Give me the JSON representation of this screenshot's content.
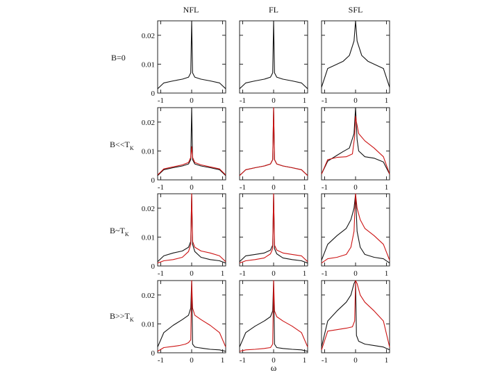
{
  "chart_data": {
    "type": "line",
    "columns": [
      "NFL",
      "FL",
      "SFL"
    ],
    "rows": [
      {
        "label": "B=0",
        "main": "B=0",
        "sub": ""
      },
      {
        "label": "B<<T_K",
        "main": "B<<T",
        "sub": "K"
      },
      {
        "label": "B~T_K",
        "main": "B~T",
        "sub": "K"
      },
      {
        "label": "B>>T_K",
        "main": "B>>T",
        "sub": "K"
      }
    ],
    "xlabel": "ω",
    "xlim": [
      -1.1,
      1.1
    ],
    "ylim": [
      0,
      0.025
    ],
    "xticks": [
      -1,
      0,
      1
    ],
    "xtick_labels": [
      "-1",
      "0",
      "1"
    ],
    "yticks": [
      0,
      0.01,
      0.02
    ],
    "ytick_labels": [
      "0",
      "0.01",
      "0.02"
    ],
    "series_colors": {
      "black": "#111111",
      "red": "#cc1111"
    },
    "panels": [
      {
        "row": 0,
        "col": 0,
        "series": [
          {
            "color": "black",
            "w": [
              -1.1,
              -0.9,
              -0.6,
              -0.3,
              -0.1,
              -0.03,
              0,
              0.03,
              0.1,
              0.3,
              0.6,
              0.9,
              1.1
            ],
            "A": [
              0.0015,
              0.0035,
              0.0042,
              0.0048,
              0.0055,
              0.007,
              0.025,
              0.007,
              0.0055,
              0.0048,
              0.0042,
              0.0035,
              0.0015
            ]
          }
        ]
      },
      {
        "row": 0,
        "col": 1,
        "series": [
          {
            "color": "black",
            "w": [
              -1.1,
              -0.9,
              -0.6,
              -0.3,
              -0.1,
              -0.03,
              0,
              0.03,
              0.1,
              0.3,
              0.6,
              0.9,
              1.1
            ],
            "A": [
              0.0015,
              0.0035,
              0.0042,
              0.0048,
              0.0055,
              0.007,
              0.025,
              0.007,
              0.0055,
              0.0048,
              0.0042,
              0.0035,
              0.0015
            ]
          }
        ]
      },
      {
        "row": 0,
        "col": 2,
        "series": [
          {
            "color": "black",
            "w": [
              -1.1,
              -0.9,
              -0.7,
              -0.4,
              -0.2,
              -0.05,
              0,
              0.05,
              0.2,
              0.4,
              0.7,
              0.9,
              1.1
            ],
            "A": [
              0.002,
              0.0085,
              0.0095,
              0.011,
              0.013,
              0.018,
              0.025,
              0.018,
              0.013,
              0.011,
              0.0095,
              0.0085,
              0.002
            ]
          }
        ]
      },
      {
        "row": 1,
        "col": 0,
        "series": [
          {
            "color": "black",
            "w": [
              -1.1,
              -0.9,
              -0.6,
              -0.3,
              -0.1,
              -0.03,
              0,
              0.03,
              0.1,
              0.3,
              0.6,
              0.9,
              1.1
            ],
            "A": [
              0.0015,
              0.0035,
              0.0042,
              0.0048,
              0.0055,
              0.007,
              0.025,
              0.007,
              0.0055,
              0.0048,
              0.0042,
              0.0035,
              0.0015
            ]
          },
          {
            "color": "red",
            "w": [
              -1.1,
              -0.9,
              -0.6,
              -0.3,
              -0.1,
              -0.03,
              0,
              0.03,
              0.1,
              0.3,
              0.6,
              0.9,
              1.1
            ],
            "A": [
              0.0017,
              0.0038,
              0.0045,
              0.0052,
              0.006,
              0.0078,
              0.0115,
              0.0078,
              0.006,
              0.0052,
              0.0045,
              0.0038,
              0.0017
            ]
          }
        ]
      },
      {
        "row": 1,
        "col": 1,
        "series": [
          {
            "color": "black",
            "w": [
              -1.1,
              -0.9,
              -0.6,
              -0.3,
              -0.1,
              -0.03,
              0,
              0.03,
              0.1,
              0.3,
              0.6,
              0.9,
              1.1
            ],
            "A": [
              0.0015,
              0.0035,
              0.0042,
              0.0048,
              0.0055,
              0.007,
              0.025,
              0.007,
              0.0055,
              0.0048,
              0.0042,
              0.0035,
              0.0015
            ]
          },
          {
            "color": "red",
            "w": [
              -1.1,
              -0.9,
              -0.6,
              -0.3,
              -0.1,
              -0.03,
              0,
              0.03,
              0.1,
              0.3,
              0.6,
              0.9,
              1.1
            ],
            "A": [
              0.0015,
              0.0035,
              0.0042,
              0.0048,
              0.0055,
              0.007,
              0.025,
              0.007,
              0.0055,
              0.0048,
              0.0042,
              0.0035,
              0.0015
            ]
          }
        ]
      },
      {
        "row": 1,
        "col": 2,
        "series": [
          {
            "color": "black",
            "w": [
              -1.1,
              -0.9,
              -0.6,
              -0.4,
              -0.2,
              -0.05,
              0,
              0.05,
              0.1,
              0.3,
              0.6,
              0.9,
              1.1
            ],
            "A": [
              0.002,
              0.0065,
              0.0085,
              0.0098,
              0.011,
              0.016,
              0.025,
              0.014,
              0.01,
              0.008,
              0.0075,
              0.0062,
              0.002
            ]
          },
          {
            "color": "red",
            "w": [
              -1.1,
              -0.9,
              -0.6,
              -0.3,
              -0.1,
              -0.03,
              0,
              0.03,
              0.1,
              0.3,
              0.6,
              0.9,
              1.1
            ],
            "A": [
              0.002,
              0.007,
              0.0078,
              0.008,
              0.009,
              0.015,
              0.022,
              0.02,
              0.016,
              0.0135,
              0.011,
              0.008,
              0.002
            ]
          }
        ]
      },
      {
        "row": 2,
        "col": 0,
        "series": [
          {
            "color": "black",
            "w": [
              -1.1,
              -0.9,
              -0.6,
              -0.3,
              -0.1,
              -0.03,
              0,
              0.03,
              0.1,
              0.3,
              0.6,
              0.9,
              1.1
            ],
            "A": [
              0.0015,
              0.0035,
              0.0045,
              0.0052,
              0.0065,
              0.0085,
              0.025,
              0.0075,
              0.005,
              0.003,
              0.0022,
              0.0018,
              0.001
            ]
          },
          {
            "color": "red",
            "w": [
              -1.1,
              -0.9,
              -0.6,
              -0.3,
              -0.1,
              -0.03,
              0,
              0.03,
              0.1,
              0.3,
              0.6,
              0.9,
              1.1
            ],
            "A": [
              0.001,
              0.0018,
              0.0022,
              0.003,
              0.005,
              0.0075,
              0.025,
              0.0085,
              0.0065,
              0.0052,
              0.0045,
              0.0035,
              0.0015
            ]
          }
        ]
      },
      {
        "row": 2,
        "col": 1,
        "series": [
          {
            "color": "black",
            "w": [
              -1.1,
              -0.9,
              -0.6,
              -0.3,
              -0.1,
              -0.03,
              0,
              0.03,
              0.1,
              0.3,
              0.6,
              0.9,
              1.1
            ],
            "A": [
              0.0015,
              0.0035,
              0.004,
              0.0045,
              0.0055,
              0.0072,
              0.025,
              0.006,
              0.0042,
              0.0028,
              0.0022,
              0.0018,
              0.001
            ]
          },
          {
            "color": "red",
            "w": [
              -1.1,
              -0.9,
              -0.6,
              -0.3,
              -0.1,
              -0.03,
              0,
              0.03,
              0.1,
              0.3,
              0.6,
              0.9,
              1.1
            ],
            "A": [
              0.001,
              0.0018,
              0.0022,
              0.0028,
              0.0042,
              0.006,
              0.025,
              0.0072,
              0.0055,
              0.0045,
              0.004,
              0.0035,
              0.0015
            ]
          }
        ]
      },
      {
        "row": 2,
        "col": 2,
        "series": [
          {
            "color": "black",
            "w": [
              -1.1,
              -0.9,
              -0.6,
              -0.3,
              -0.15,
              -0.05,
              0,
              0.05,
              0.15,
              0.3,
              0.6,
              0.9,
              1.1
            ],
            "A": [
              0.002,
              0.0075,
              0.0105,
              0.013,
              0.016,
              0.02,
              0.025,
              0.012,
              0.0065,
              0.004,
              0.003,
              0.0025,
              0.001
            ]
          },
          {
            "color": "red",
            "w": [
              -1.1,
              -0.9,
              -0.6,
              -0.3,
              -0.15,
              -0.05,
              0,
              0.05,
              0.15,
              0.3,
              0.6,
              0.9,
              1.1
            ],
            "A": [
              0.001,
              0.0025,
              0.003,
              0.004,
              0.0065,
              0.012,
              0.025,
              0.02,
              0.016,
              0.013,
              0.0105,
              0.0075,
              0.002
            ]
          }
        ]
      },
      {
        "row": 3,
        "col": 0,
        "series": [
          {
            "color": "black",
            "w": [
              -1.1,
              -0.9,
              -0.6,
              -0.3,
              -0.1,
              -0.03,
              0,
              0.03,
              0.1,
              0.2,
              0.4,
              0.6,
              0.9,
              1.1
            ],
            "A": [
              0.002,
              0.007,
              0.0095,
              0.0115,
              0.013,
              0.0155,
              0.025,
              0.003,
              0.002,
              0.0018,
              0.0015,
              0.0012,
              0.001,
              0.0005
            ]
          },
          {
            "color": "red",
            "w": [
              -1.1,
              -0.9,
              -0.6,
              -0.4,
              -0.2,
              -0.1,
              -0.03,
              0,
              0.03,
              0.1,
              0.3,
              0.6,
              0.9,
              1.1
            ],
            "A": [
              0.0005,
              0.0018,
              0.0022,
              0.0025,
              0.003,
              0.0035,
              0.0045,
              0.025,
              0.0155,
              0.013,
              0.0115,
              0.0095,
              0.007,
              0.002
            ]
          }
        ]
      },
      {
        "row": 3,
        "col": 1,
        "series": [
          {
            "color": "black",
            "w": [
              -1.1,
              -0.9,
              -0.6,
              -0.3,
              -0.1,
              -0.03,
              0,
              0.03,
              0.1,
              0.3,
              0.6,
              0.9,
              1.1
            ],
            "A": [
              0.002,
              0.007,
              0.0092,
              0.011,
              0.0125,
              0.0145,
              0.025,
              0.003,
              0.0018,
              0.0015,
              0.0012,
              0.001,
              0.0005
            ]
          },
          {
            "color": "red",
            "w": [
              -1.1,
              -0.9,
              -0.6,
              -0.3,
              -0.1,
              -0.03,
              0,
              0.03,
              0.1,
              0.3,
              0.6,
              0.9,
              1.1
            ],
            "A": [
              0.0005,
              0.001,
              0.0012,
              0.0015,
              0.0018,
              0.003,
              0.025,
              0.0145,
              0.0125,
              0.011,
              0.0092,
              0.007,
              0.002
            ]
          }
        ]
      },
      {
        "row": 3,
        "col": 2,
        "series": [
          {
            "color": "black",
            "w": [
              -1.1,
              -0.9,
              -0.6,
              -0.3,
              -0.15,
              -0.05,
              0,
              0.03,
              0.1,
              0.3,
              0.6,
              0.9,
              1.1
            ],
            "A": [
              0.002,
              0.011,
              0.0145,
              0.0175,
              0.02,
              0.024,
              0.025,
              0.006,
              0.004,
              0.003,
              0.0025,
              0.002,
              0.001
            ]
          },
          {
            "color": "red",
            "w": [
              -1.1,
              -0.9,
              -0.6,
              -0.3,
              -0.1,
              -0.03,
              0,
              0.05,
              0.15,
              0.3,
              0.6,
              0.9,
              1.1
            ],
            "A": [
              0.001,
              0.0075,
              0.008,
              0.0085,
              0.009,
              0.011,
              0.025,
              0.024,
              0.02,
              0.0175,
              0.0145,
              0.011,
              0.002
            ]
          }
        ]
      }
    ]
  }
}
